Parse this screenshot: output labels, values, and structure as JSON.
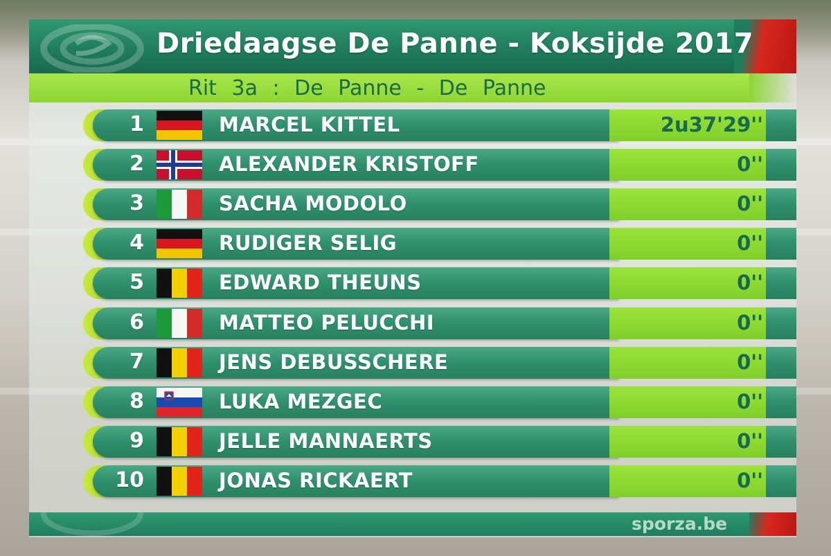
{
  "header": {
    "title": "Driedaagse De Panne - Koksijde 2017",
    "subtitle": "Rit 3a : De Panne - De Panne"
  },
  "results": [
    {
      "rank": "1",
      "flag": "germany-flag",
      "name": "MARCEL KITTEL",
      "time": "2u37'29''"
    },
    {
      "rank": "2",
      "flag": "norway-flag",
      "name": "ALEXANDER KRISTOFF",
      "time": "0''"
    },
    {
      "rank": "3",
      "flag": "italy-flag",
      "name": "SACHA MODOLO",
      "time": "0''"
    },
    {
      "rank": "4",
      "flag": "germany-flag",
      "name": "RUDIGER SELIG",
      "time": "0''"
    },
    {
      "rank": "5",
      "flag": "belgium-flag",
      "name": "EDWARD THEUNS",
      "time": "0''"
    },
    {
      "rank": "6",
      "flag": "italy-flag",
      "name": "MATTEO PELUCCHI",
      "time": "0''"
    },
    {
      "rank": "7",
      "flag": "belgium-flag",
      "name": "JENS DEBUSSCHERE",
      "time": "0''"
    },
    {
      "rank": "8",
      "flag": "slovenia-flag",
      "name": "LUKA MEZGEC",
      "time": "0''"
    },
    {
      "rank": "9",
      "flag": "belgium-flag",
      "name": "JELLE MANNAERTS",
      "time": "0''"
    },
    {
      "rank": "10",
      "flag": "belgium-flag",
      "name": "JONAS RICKAERT",
      "time": "0''"
    }
  ],
  "footer": {
    "brand": "sporza.be"
  },
  "colors": {
    "header_green": "#1f7d5d",
    "accent_lime": "#8ed634",
    "row_green": "#2f8f6c",
    "accent_red": "#d9261e",
    "time_text": "#176a4e"
  }
}
